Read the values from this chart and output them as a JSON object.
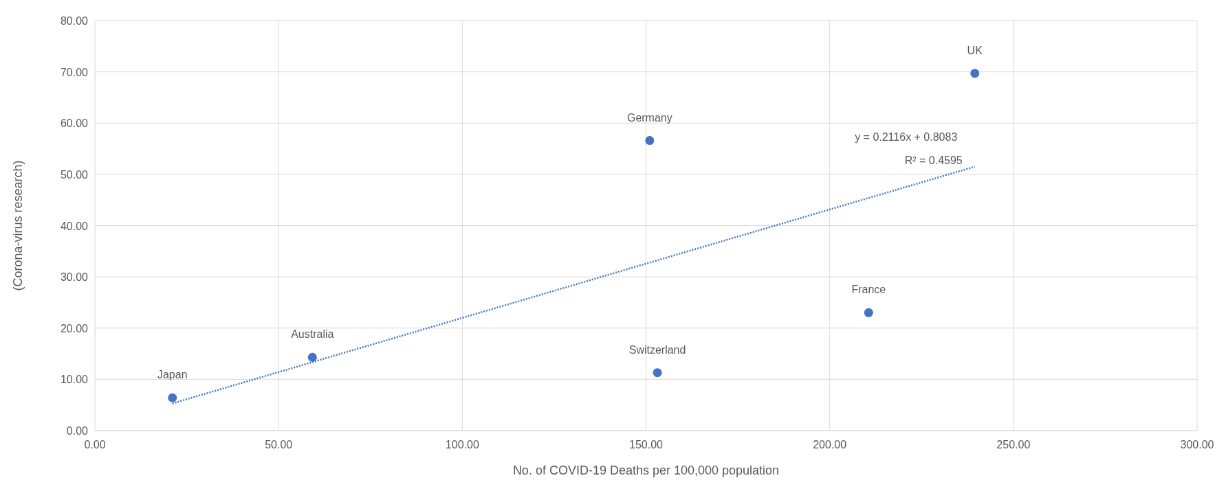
{
  "chart_data": {
    "type": "scatter",
    "xlabel": "No. of COVID-19 Deaths per 100,000 population",
    "ylabel": "(Corona-virus research)",
    "xlim": [
      0,
      300
    ],
    "xticks": [
      {
        "value": 0,
        "label": "0.00"
      },
      {
        "value": 50,
        "label": "50.00"
      },
      {
        "value": 100,
        "label": "100.00"
      },
      {
        "value": 150,
        "label": "150.00"
      },
      {
        "value": 200,
        "label": "200.00"
      },
      {
        "value": 250,
        "label": "250.00"
      },
      {
        "value": 300,
        "label": "300.00"
      }
    ],
    "ylim": [
      0,
      80
    ],
    "yticks": [
      {
        "value": 0,
        "label": "0.00"
      },
      {
        "value": 10,
        "label": "10.00"
      },
      {
        "value": 20,
        "label": "20.00"
      },
      {
        "value": 30,
        "label": "30.00"
      },
      {
        "value": 40,
        "label": "40.00"
      },
      {
        "value": 50,
        "label": "50.00"
      },
      {
        "value": 60,
        "label": "60.00"
      },
      {
        "value": 70,
        "label": "70.00"
      },
      {
        "value": 80,
        "label": "80.00"
      }
    ],
    "grid": true,
    "marker": "circle",
    "series": [
      {
        "color": "#4472c4",
        "x": [
          21.1,
          59.2,
          153.1,
          151,
          210.6,
          239.5
        ],
        "values": [
          6.4,
          14.3,
          11.3,
          56.6,
          23.0,
          69.7
        ]
      },
      {
        "type": "line",
        "color": "#4472c4",
        "line_style": "dotted",
        "marker": "none",
        "x": [
          21.1,
          239.5
        ],
        "values": [
          5.3,
          51.5
        ]
      }
    ],
    "annotations": [
      {
        "text": "Japan",
        "x": 21.1,
        "y": 6.4
      },
      {
        "text": "Australia",
        "x": 59.2,
        "y": 14.3
      },
      {
        "text": "Switzerland",
        "x": 153.1,
        "y": 11.3
      },
      {
        "text": "Germany",
        "x": 151,
        "y": 56.6
      },
      {
        "text": "France",
        "x": 210.6,
        "y": 23.0
      },
      {
        "text": "UK",
        "x": 239.5,
        "y": 69.7
      },
      "y = 0.2116x + 0.8083",
      "R² = 0.4595"
    ]
  }
}
